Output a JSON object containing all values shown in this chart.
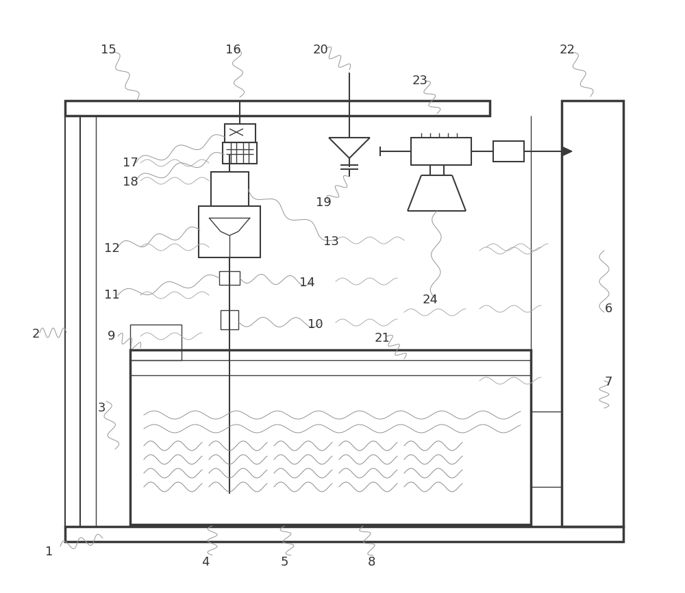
{
  "bg": "#ffffff",
  "lc": "#3a3a3a",
  "gray": "#888888",
  "lw_thick": 2.5,
  "lw_med": 1.5,
  "lw_thin": 1.0,
  "lw_wave": 0.8
}
